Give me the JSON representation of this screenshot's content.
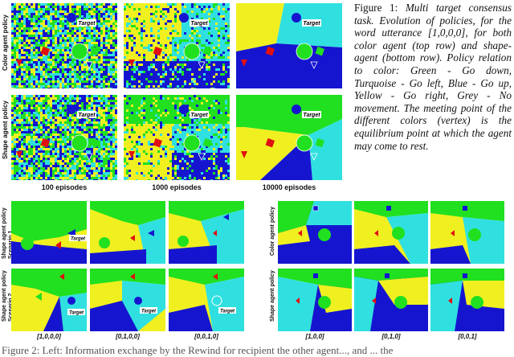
{
  "figure1": {
    "caption_label": "Figure 1:",
    "caption_body": "Multi target consensus task. Evolution of policies, for the word utterance [1,0,0,0], for both color agent (top row) and shape-agent (bottom row). Policy relation to color: Green - Go down, Turquoise - Go left, Blue - Go up, Yellow - Go right, Grey - No movement. The meeting point of the different colors (vertex) is the equilibrium point at which the agent may come to rest.",
    "row_labels": [
      "Color agent policy",
      "Shape agent policy"
    ],
    "column_labels": [
      "100 episodes",
      "1000 episodes",
      "10000 episodes"
    ],
    "target_label": "Target"
  },
  "figure_left": {
    "row_labels": [
      "Shape agent policy\nScenario 1",
      "Shape agent policy\nScenario 2"
    ],
    "column_labels": [
      "[1,0,0,0]",
      "[0,1,0,0]",
      "[0,0,1,0]"
    ],
    "target_label": "Target"
  },
  "figure_right": {
    "row_labels": [
      "Color agent policy",
      "Shape agent policy"
    ],
    "column_labels": [
      "[1,0,0]",
      "[0,1,0]",
      "[0,0,1]"
    ]
  },
  "next_caption": "Figure 2: Left: Information exchange by the Rewind for recipient the other agent..., and ... the",
  "colors": {
    "green": "#20e020",
    "turquoise": "#30e0e0",
    "blue": "#1515d0",
    "yellow": "#f0f020",
    "grey": "#808080",
    "red": "#e01010"
  }
}
